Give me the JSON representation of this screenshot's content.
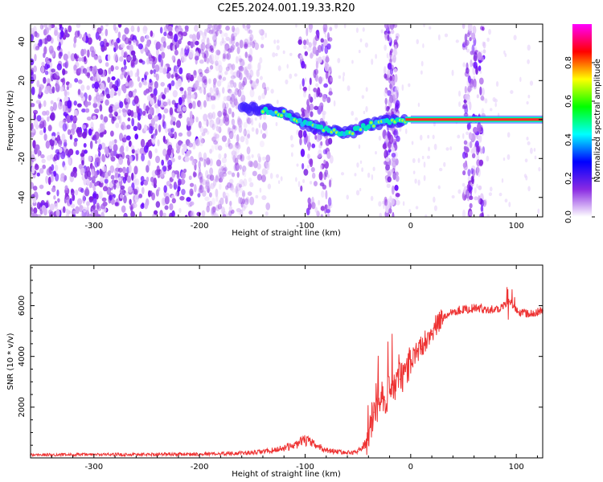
{
  "figure": {
    "title": "C2E5.2024.001.19.33.R20"
  },
  "chart_data": [
    {
      "type": "heatmap",
      "title": "C2E5.2024.001.19.33.R20",
      "xlabel": "Height of straight line (km)",
      "ylabel": "Frequency (Hz)",
      "xlim": [
        -360,
        125
      ],
      "ylim": [
        -50,
        49
      ],
      "xticks": [
        -300,
        -200,
        -100,
        0,
        100
      ],
      "xtick_labels": [
        "-300",
        "-200",
        "-100",
        "0",
        "100"
      ],
      "yticks": [
        -40,
        -20,
        0,
        20,
        40
      ],
      "ytick_labels": [
        "-40",
        "-20",
        "0",
        "20",
        "40"
      ],
      "colorbar": {
        "label": "Normalized spectral amplitude",
        "range": [
          0,
          1
        ],
        "ticks": [
          0.0,
          0.2,
          0.4,
          0.6,
          0.8
        ],
        "tick_labels": [
          "0.0",
          "0.2",
          "0.4",
          "0.6",
          "0.8"
        ],
        "colormap": [
          "#ffffff",
          "#8a2be2",
          "#0000ff",
          "#00ffff",
          "#00ff00",
          "#ffff00",
          "#ff0000",
          "#ff00ff"
        ]
      },
      "features": {
        "noise_region_km": [
          -360,
          -150
        ],
        "noise_bands_km": [
          [
            -105,
            -75
          ],
          [
            -25,
            -12
          ],
          [
            50,
            70
          ]
        ],
        "tone_frequency_hz": [
          {
            "x": -160,
            "y": 6
          },
          {
            "x": -140,
            "y": 5
          },
          {
            "x": -120,
            "y": 3
          },
          {
            "x": -100,
            "y": -2
          },
          {
            "x": -80,
            "y": -5
          },
          {
            "x": -60,
            "y": -7
          },
          {
            "x": -40,
            "y": -3
          },
          {
            "x": -20,
            "y": -1
          },
          {
            "x": 0,
            "y": 0
          },
          {
            "x": 125,
            "y": 0
          }
        ]
      }
    },
    {
      "type": "line",
      "xlabel": "Height of straight line (km)",
      "ylabel": "SNR (10 * v/v)",
      "xlim": [
        -360,
        125
      ],
      "ylim": [
        0,
        7600
      ],
      "xticks": [
        -300,
        -200,
        -100,
        0,
        100
      ],
      "xtick_labels": [
        "-300",
        "-200",
        "-100",
        "0",
        "100"
      ],
      "yticks": [
        2000,
        4000,
        6000
      ],
      "ytick_labels": [
        "2000",
        "4000",
        "6000"
      ],
      "color": "#ee3333",
      "series": [
        {
          "name": "SNR",
          "x": [
            -360,
            -300,
            -200,
            -150,
            -130,
            -110,
            -100,
            -90,
            -80,
            -60,
            -50,
            -42,
            -38,
            -35,
            -30,
            -25,
            -20,
            -15,
            -10,
            -5,
            0,
            10,
            20,
            30,
            40,
            60,
            80,
            90,
            95,
            100,
            110,
            125
          ],
          "y": [
            120,
            130,
            150,
            200,
            300,
            500,
            700,
            500,
            300,
            200,
            250,
            600,
            1200,
            1800,
            2200,
            2400,
            2600,
            2800,
            3100,
            3400,
            3800,
            4400,
            5000,
            5500,
            5800,
            5900,
            5850,
            6000,
            6200,
            5800,
            5700,
            5800
          ]
        }
      ]
    }
  ]
}
